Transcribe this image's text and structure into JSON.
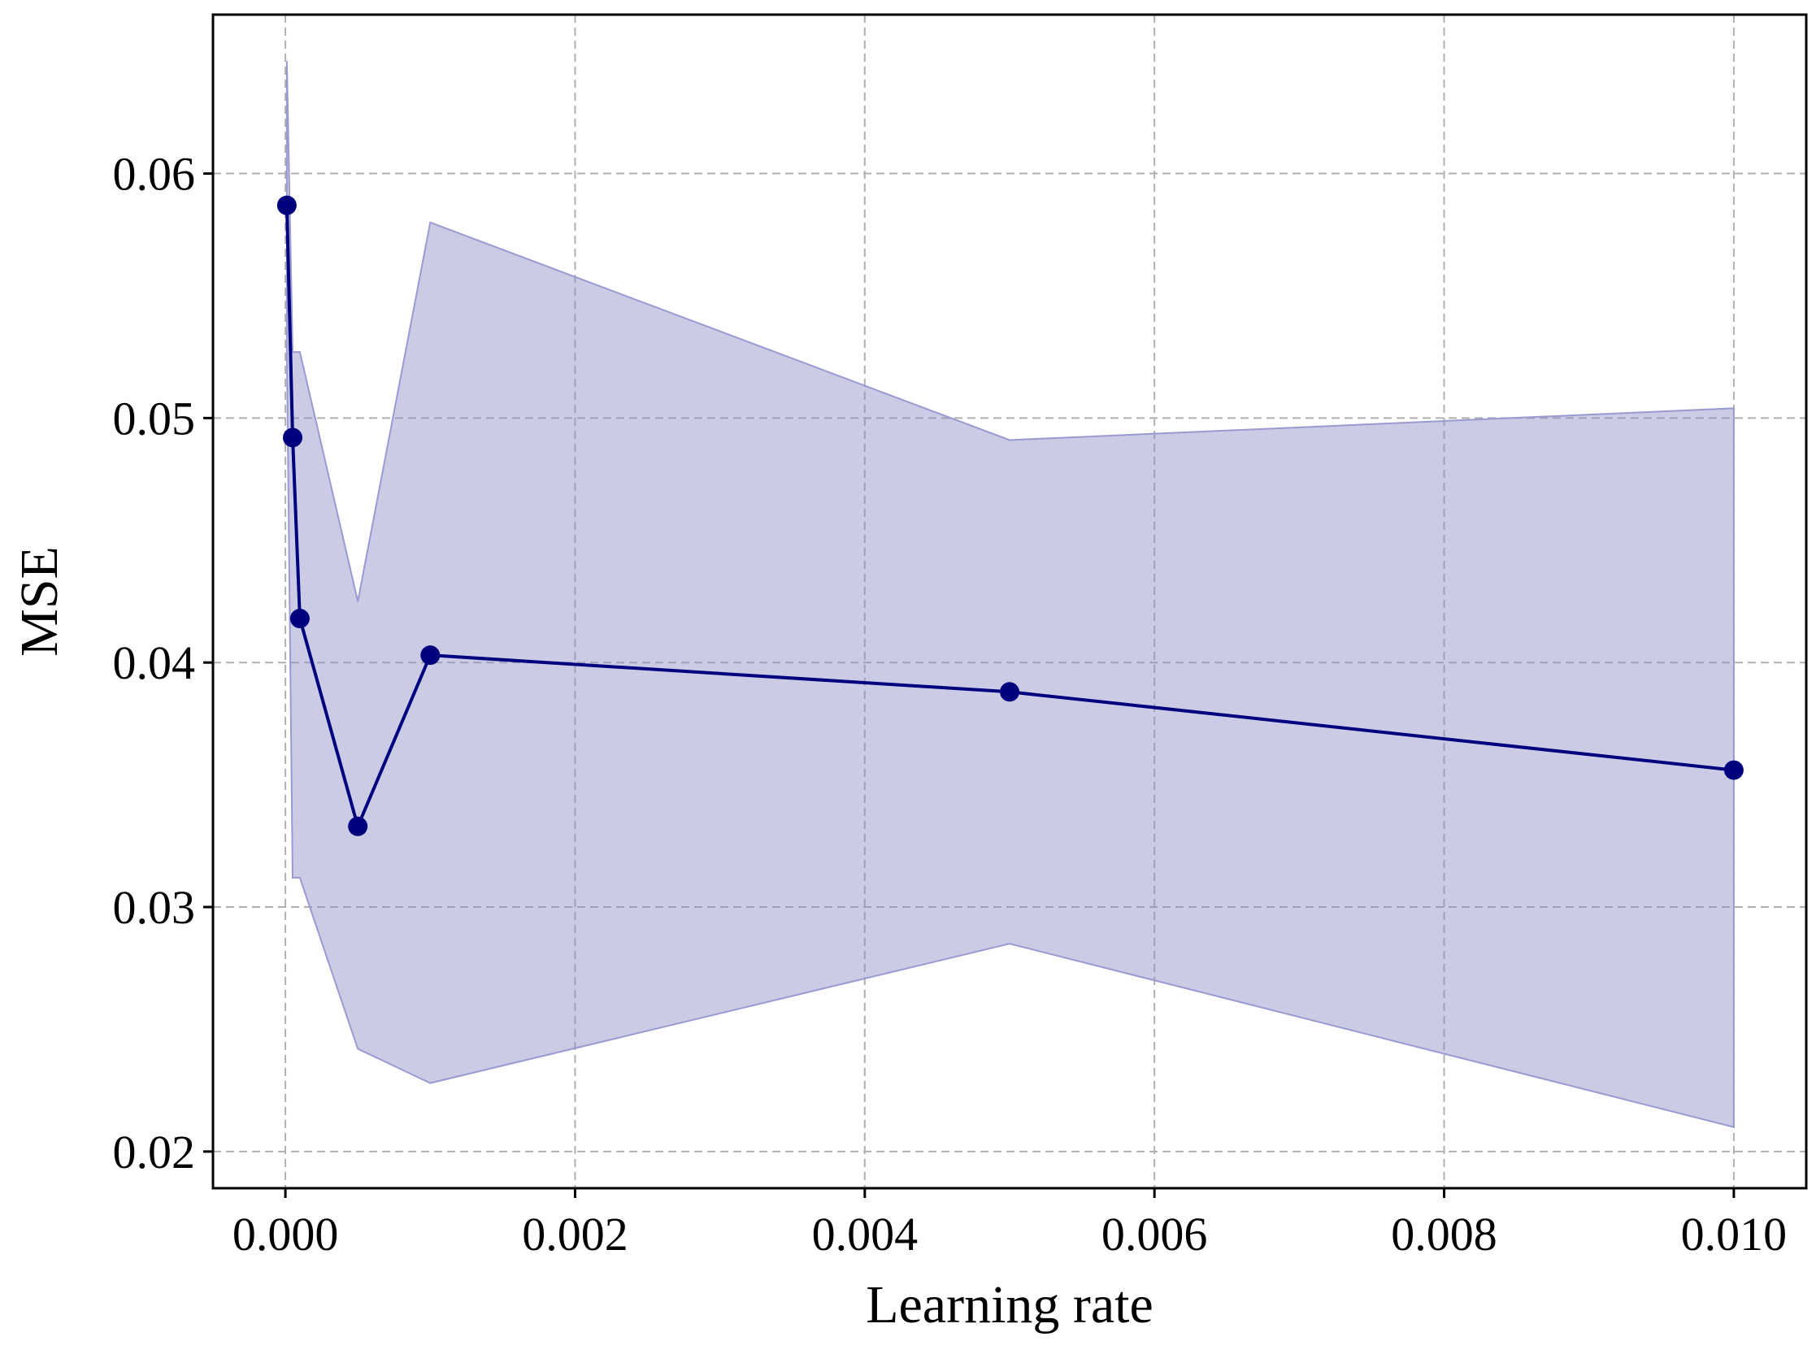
{
  "chart_data": {
    "type": "line",
    "title": "",
    "xlabel": "Learning rate",
    "ylabel": "MSE",
    "xlim": [
      -0.0005,
      0.0105
    ],
    "ylim": [
      0.0185,
      0.0665
    ],
    "xticks": [
      0.0,
      0.002,
      0.004,
      0.006,
      0.008,
      0.01
    ],
    "xtick_labels": [
      "0.000",
      "0.002",
      "0.004",
      "0.006",
      "0.008",
      "0.010"
    ],
    "yticks": [
      0.02,
      0.03,
      0.04,
      0.05,
      0.06
    ],
    "ytick_labels": [
      "0.02",
      "0.03",
      "0.04",
      "0.05",
      "0.06"
    ],
    "grid": true,
    "grid_style": "dashed",
    "legend": "none",
    "colors": {
      "line": "#00007f",
      "band": "#8c8cc6",
      "band_edge": "#9a9ad2",
      "grid": "#b0b0b0",
      "axes": "#000000"
    },
    "series": [
      {
        "x": [
          1e-05,
          5e-05,
          0.0001,
          0.0005,
          0.001,
          0.005,
          0.01
        ],
        "values": [
          0.0587,
          0.0492,
          0.0418,
          0.0333,
          0.0403,
          0.0388,
          0.0356
        ],
        "upper": [
          0.0646,
          0.0527,
          0.0527,
          0.0425,
          0.058,
          0.0491,
          0.0504
        ],
        "lower": [
          0.0528,
          0.0312,
          0.0312,
          0.0242,
          0.0228,
          0.0285,
          0.021
        ]
      }
    ]
  }
}
